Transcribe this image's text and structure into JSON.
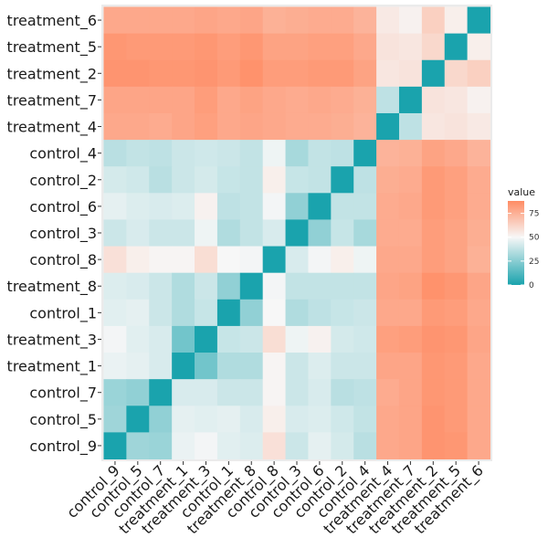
{
  "chart_data": {
    "type": "heatmap",
    "title": "",
    "xlabel": "",
    "ylabel": "",
    "categories": [
      "control_9",
      "control_5",
      "control_7",
      "treatment_1",
      "treatment_3",
      "control_1",
      "treatment_8",
      "control_8",
      "control_3",
      "control_6",
      "control_2",
      "control_4",
      "treatment_4",
      "treatment_7",
      "treatment_2",
      "treatment_5",
      "treatment_6"
    ],
    "row_categories_top_to_bottom": [
      "treatment_6",
      "treatment_5",
      "treatment_2",
      "treatment_7",
      "treatment_4",
      "control_4",
      "control_2",
      "control_6",
      "control_3",
      "control_8",
      "treatment_8",
      "control_1",
      "treatment_3",
      "treatment_1",
      "control_7",
      "control_5",
      "control_9"
    ],
    "values": [
      [
        0,
        30,
        29,
        47,
        49,
        45,
        44,
        58,
        40,
        46,
        42,
        36,
        78,
        79,
        85,
        84,
        78
      ],
      [
        30,
        0,
        27,
        46,
        45,
        46,
        43,
        53,
        43,
        44,
        41,
        38,
        78,
        79,
        85,
        83,
        78
      ],
      [
        29,
        27,
        0,
        43,
        43,
        40,
        40,
        51,
        40,
        43,
        36,
        37,
        77,
        79,
        84,
        83,
        78
      ],
      [
        47,
        46,
        43,
        0,
        20,
        34,
        34,
        51,
        40,
        44,
        40,
        40,
        79,
        79,
        84,
        83,
        78
      ],
      [
        49,
        45,
        43,
        20,
        0,
        39,
        40,
        59,
        48,
        52,
        42,
        41,
        81,
        82,
        85,
        84,
        79
      ],
      [
        45,
        46,
        40,
        34,
        39,
        0,
        27,
        50,
        34,
        37,
        39,
        40,
        78,
        78,
        83,
        82,
        78
      ],
      [
        44,
        43,
        40,
        34,
        40,
        27,
        0,
        49,
        38,
        38,
        38,
        38,
        79,
        80,
        86,
        84,
        79
      ],
      [
        58,
        53,
        51,
        51,
        59,
        50,
        49,
        0,
        43,
        49,
        53,
        48,
        78,
        78,
        82,
        80,
        75
      ],
      [
        40,
        43,
        40,
        40,
        48,
        34,
        38,
        43,
        0,
        27,
        39,
        32,
        77,
        77,
        82,
        80,
        76
      ],
      [
        46,
        44,
        43,
        44,
        52,
        37,
        38,
        49,
        27,
        0,
        38,
        38,
        77,
        78,
        83,
        81,
        77
      ],
      [
        42,
        41,
        36,
        40,
        42,
        39,
        38,
        53,
        39,
        38,
        0,
        37,
        76,
        77,
        83,
        81,
        77
      ],
      [
        36,
        38,
        37,
        40,
        41,
        40,
        38,
        48,
        32,
        38,
        37,
        0,
        74,
        75,
        80,
        78,
        74
      ],
      [
        78,
        78,
        77,
        79,
        81,
        78,
        79,
        78,
        77,
        77,
        76,
        74,
        0,
        37,
        56,
        57,
        55
      ],
      [
        79,
        79,
        79,
        79,
        82,
        78,
        80,
        78,
        77,
        78,
        77,
        75,
        37,
        0,
        57,
        56,
        52
      ],
      [
        85,
        85,
        84,
        84,
        85,
        83,
        86,
        82,
        82,
        83,
        83,
        80,
        56,
        57,
        0,
        61,
        64
      ],
      [
        84,
        83,
        83,
        83,
        84,
        82,
        84,
        80,
        80,
        81,
        81,
        78,
        57,
        56,
        61,
        0,
        53
      ],
      [
        78,
        78,
        78,
        78,
        79,
        78,
        79,
        75,
        76,
        77,
        77,
        74,
        55,
        52,
        64,
        53,
        0
      ]
    ],
    "color_scale": {
      "low": "#1aa3ad",
      "mid": "#f7f7f7",
      "high": "#ff8c64",
      "domain": [
        0,
        50,
        88
      ]
    },
    "legend": {
      "title": "value",
      "ticks": [
        0,
        25,
        50,
        75
      ],
      "tick_labels": [
        "0",
        "25",
        "50",
        "75"
      ],
      "position": "right"
    },
    "panel_background": "#ebebeb"
  }
}
